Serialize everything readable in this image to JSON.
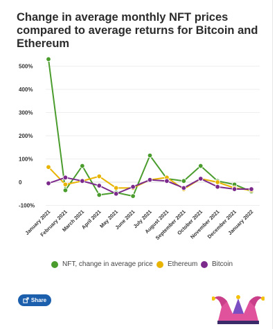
{
  "title": "Change in average monthly NFT prices compared to average returns for Bitcoin and Ethereum",
  "share_label": "Share",
  "logo_name": "jester-hat-logo",
  "chart_data": {
    "type": "line",
    "categories": [
      "January 2021",
      "February 2021",
      "March 2021",
      "April 2021",
      "May 2021",
      "June 2021",
      "July 2021",
      "August 2021",
      "September 2021",
      "October 2021",
      "November 2021",
      "December 2021",
      "January 2022"
    ],
    "series": [
      {
        "name": "NFT, change in average price",
        "color": "#4a9c2d",
        "values": [
          530,
          -35,
          70,
          -55,
          -45,
          -60,
          115,
          15,
          5,
          70,
          5,
          -10,
          -40
        ]
      },
      {
        "name": "Ethereum",
        "color": "#e8b400",
        "values": [
          65,
          -10,
          5,
          25,
          -25,
          -25,
          10,
          20,
          -30,
          15,
          0,
          -25,
          -35
        ]
      },
      {
        "name": "Bitcoin",
        "color": "#7b2a8c",
        "values": [
          -5,
          20,
          5,
          -15,
          -50,
          -20,
          10,
          5,
          -25,
          15,
          -20,
          -30,
          -30
        ]
      }
    ],
    "y_ticks": [
      -100,
      0,
      100,
      200,
      300,
      400,
      500
    ],
    "y_tick_labels": [
      "-100%",
      "0",
      "100%",
      "200%",
      "300%",
      "400%",
      "500%"
    ],
    "ylim": [
      -100,
      500
    ],
    "grid": true,
    "legend_position": "bottom"
  }
}
